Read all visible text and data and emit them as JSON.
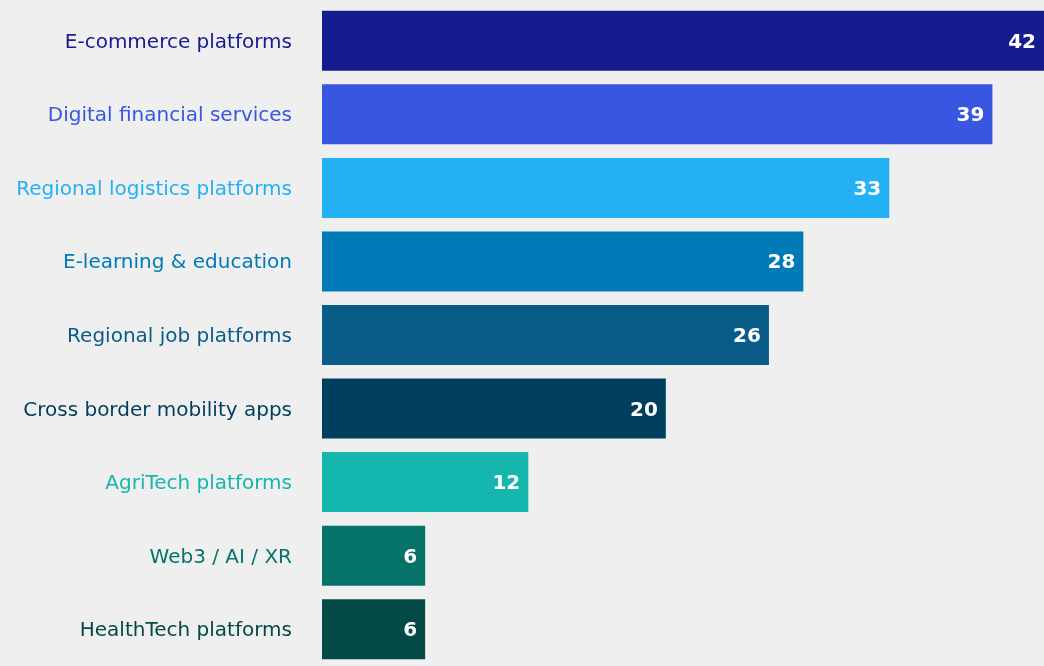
{
  "chart_data": {
    "type": "bar",
    "orientation": "horizontal",
    "data_labels": true,
    "categories": [
      "E-commerce platforms",
      "Digital financial services",
      "Regional logistics platforms",
      "E-learning & education",
      "Regional job platforms",
      "Cross border mobility apps",
      "AgriTech platforms",
      "Web3 / AI / XR",
      "HealthTech platforms"
    ],
    "values": [
      42,
      39,
      33,
      28,
      26,
      20,
      12,
      6,
      6
    ],
    "colors": [
      "#141c8f",
      "#3757e0",
      "#23b0f5",
      "#017ab8",
      "#085c87",
      "#003e5e",
      "#14b6ae",
      "#06736b",
      "#034a47"
    ]
  }
}
